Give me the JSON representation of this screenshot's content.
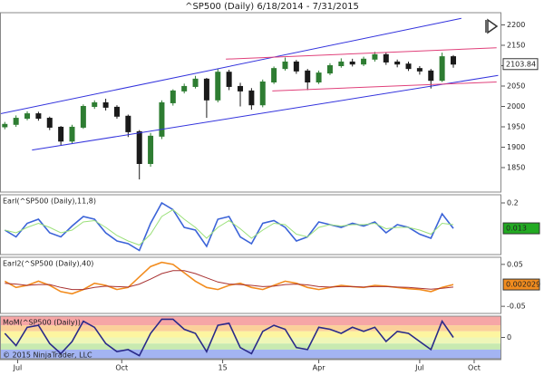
{
  "chart_data": [
    {
      "type": "candlestick",
      "title": "^SP500 (Daily)  6/18/2014 - 7/31/2015",
      "x": [
        0,
        7,
        14,
        21,
        28,
        35,
        42,
        49,
        56,
        63,
        70,
        77,
        84,
        91,
        98,
        105,
        112,
        119,
        126,
        133,
        140,
        147,
        154,
        161,
        168,
        175,
        182,
        189,
        196,
        203,
        210,
        217,
        224,
        231,
        238,
        245,
        252,
        259,
        266,
        273,
        280
      ],
      "open": [
        1950,
        1956,
        1971,
        1982,
        1971,
        1949,
        1915,
        1949,
        2000,
        2009,
        1998,
        1976,
        1938,
        1860,
        1927,
        2009,
        2038,
        2049,
        2067,
        2016,
        2084,
        2049,
        2038,
        2004,
        2060,
        2093,
        2109,
        2087,
        2060,
        2082,
        2100,
        2109,
        2104,
        2116,
        2127,
        2109,
        2104,
        2093,
        2087,
        2064,
        2122
      ],
      "high": [
        1962,
        1978,
        1988,
        1987,
        1975,
        1952,
        1955,
        2005,
        2015,
        2019,
        2003,
        1980,
        1942,
        1935,
        2015,
        2042,
        2056,
        2075,
        2070,
        2092,
        2090,
        2058,
        2045,
        2066,
        2098,
        2120,
        2114,
        2092,
        2088,
        2106,
        2118,
        2117,
        2122,
        2134,
        2132,
        2115,
        2110,
        2099,
        2092,
        2132,
        2126
      ],
      "low": [
        1944,
        1950,
        1966,
        1965,
        1942,
        1905,
        1910,
        1945,
        1994,
        1990,
        1970,
        1925,
        1821,
        1852,
        1920,
        2002,
        2032,
        2044,
        1972,
        2010,
        2040,
        2000,
        1992,
        1998,
        2055,
        2088,
        2080,
        2040,
        2055,
        2077,
        2095,
        2098,
        2099,
        2110,
        2102,
        2096,
        2087,
        2078,
        2044,
        2060,
        2095
      ],
      "close": [
        1956,
        1971,
        1982,
        1971,
        1949,
        1915,
        1949,
        2000,
        2009,
        1998,
        1976,
        1938,
        1860,
        1927,
        2009,
        2038,
        2049,
        2067,
        2016,
        2084,
        2049,
        2038,
        2004,
        2060,
        2093,
        2109,
        2087,
        2060,
        2082,
        2100,
        2109,
        2104,
        2116,
        2127,
        2109,
        2104,
        2093,
        2087,
        2064,
        2122,
        2103.84
      ],
      "up_color": "#2e7d32",
      "down_color": "#1a1a1a",
      "last_box": true,
      "xlim": [
        -3,
        310
      ],
      "ylim": [
        1790,
        2230
      ],
      "xticks": [
        {
          "value": 8,
          "label": "Jul"
        },
        {
          "value": 73,
          "label": "Oct"
        },
        {
          "value": 136,
          "label": "15"
        },
        {
          "value": 196,
          "label": "Apr"
        },
        {
          "value": 259,
          "label": "Jul"
        },
        {
          "value": 293,
          "label": "Oct"
        }
      ],
      "yticks": [
        2200,
        2150,
        2100,
        2050,
        2000,
        1950,
        1900,
        1850
      ],
      "lines": [
        {
          "color": "#3333dd",
          "x": [
            -3,
            285
          ],
          "y": [
            1982,
            2216
          ]
        },
        {
          "color": "#3333dd",
          "x": [
            17,
            308
          ],
          "y": [
            1893,
            2076
          ]
        },
        {
          "color": "#e0407a",
          "x": [
            138,
            307
          ],
          "y": [
            2116,
            2144
          ]
        },
        {
          "color": "#e0407a",
          "x": [
            167,
            307
          ],
          "y": [
            2038,
            2060
          ]
        }
      ]
    },
    {
      "type": "line",
      "title": "Earl(^SP500 (Daily),11,8)",
      "ylim": [
        -0.18,
        0.26
      ],
      "yticks": [
        0.2
      ],
      "series": [
        {
          "color": "#3b63d8",
          "label_box": "#22aa22",
          "values": [
            0.0,
            -0.05,
            0.05,
            0.08,
            -0.02,
            -0.05,
            0.03,
            0.1,
            0.08,
            -0.02,
            -0.08,
            -0.1,
            -0.15,
            0.05,
            0.2,
            0.15,
            0.02,
            0.0,
            -0.12,
            0.08,
            0.1,
            -0.05,
            -0.1,
            0.05,
            0.07,
            0.02,
            -0.08,
            -0.05,
            0.06,
            0.04,
            0.02,
            0.05,
            0.03,
            0.06,
            -0.02,
            0.04,
            0.02,
            -0.03,
            -0.06,
            0.12,
            0.013
          ]
        },
        {
          "color": "#9be07a",
          "values": [
            0.0,
            -0.02,
            0.02,
            0.05,
            0.02,
            -0.02,
            0.0,
            0.06,
            0.07,
            0.02,
            -0.04,
            -0.08,
            -0.11,
            -0.03,
            0.1,
            0.15,
            0.08,
            0.02,
            -0.06,
            0.02,
            0.07,
            0.01,
            -0.06,
            0.0,
            0.05,
            0.04,
            -0.03,
            -0.05,
            0.02,
            0.04,
            0.03,
            0.04,
            0.04,
            0.05,
            0.01,
            0.02,
            0.02,
            0.0,
            -0.03,
            0.05,
            0.04
          ]
        }
      ]
    },
    {
      "type": "line",
      "title": "Earl2(^SP500 (Daily),40)",
      "ylim": [
        -0.067,
        0.067
      ],
      "yticks": [
        0.05,
        -0.05
      ],
      "series": [
        {
          "color": "#f28c1e",
          "label_box": "#f28c1e",
          "values": [
            0.01,
            -0.005,
            0.0,
            0.01,
            0.0,
            -0.015,
            -0.02,
            -0.01,
            0.005,
            0.0,
            -0.01,
            -0.005,
            0.02,
            0.045,
            0.055,
            0.05,
            0.03,
            0.01,
            -0.005,
            -0.01,
            0.0,
            0.005,
            -0.005,
            -0.01,
            0.0,
            0.01,
            0.005,
            -0.005,
            -0.01,
            -0.005,
            0.0,
            -0.003,
            -0.005,
            0.0,
            -0.002,
            -0.005,
            -0.008,
            -0.01,
            -0.015,
            -0.005,
            0.002029
          ]
        },
        {
          "color": "#a83232",
          "values": [
            0.005,
            0.003,
            0.0,
            0.002,
            0.002,
            -0.005,
            -0.01,
            -0.01,
            -0.005,
            -0.002,
            -0.003,
            -0.004,
            0.003,
            0.015,
            0.028,
            0.035,
            0.035,
            0.028,
            0.018,
            0.008,
            0.003,
            0.002,
            0.0,
            -0.003,
            -0.002,
            0.002,
            0.003,
            0.001,
            -0.003,
            -0.004,
            -0.003,
            -0.003,
            -0.004,
            -0.003,
            -0.003,
            -0.004,
            -0.005,
            -0.007,
            -0.009,
            -0.007,
            -0.004
          ]
        }
      ]
    },
    {
      "type": "line",
      "title": "MoM(^SP500 (Daily))",
      "annotation": "© 2015 NinjaTrader, LLC",
      "ylim": [
        -1.05,
        1.05
      ],
      "yticks": [
        0
      ],
      "bands": [
        {
          "from": 0.6,
          "to": 1.05,
          "color": "#f6a6a6"
        },
        {
          "from": 0.3,
          "to": 0.6,
          "color": "#fbd09a"
        },
        {
          "from": 0,
          "to": 0.3,
          "color": "#fdf5a0"
        },
        {
          "from": -0.3,
          "to": 0,
          "color": "#eef6b8"
        },
        {
          "from": -0.6,
          "to": -0.3,
          "color": "#c8eab0"
        },
        {
          "from": -1.05,
          "to": -0.6,
          "color": "#a3b4f2"
        }
      ],
      "series": [
        {
          "color": "#2a2a8a",
          "values": [
            0.2,
            -0.4,
            0.5,
            0.6,
            -0.3,
            -0.8,
            -0.2,
            0.8,
            0.5,
            -0.3,
            -0.7,
            -0.6,
            -0.9,
            0.2,
            0.9,
            0.9,
            0.4,
            0.2,
            -0.7,
            0.6,
            0.7,
            -0.5,
            -0.8,
            0.3,
            0.6,
            0.4,
            -0.5,
            -0.6,
            0.5,
            0.4,
            0.2,
            0.5,
            0.3,
            0.5,
            -0.2,
            0.3,
            0.2,
            -0.2,
            -0.6,
            0.8,
            0.0
          ]
        }
      ]
    }
  ]
}
